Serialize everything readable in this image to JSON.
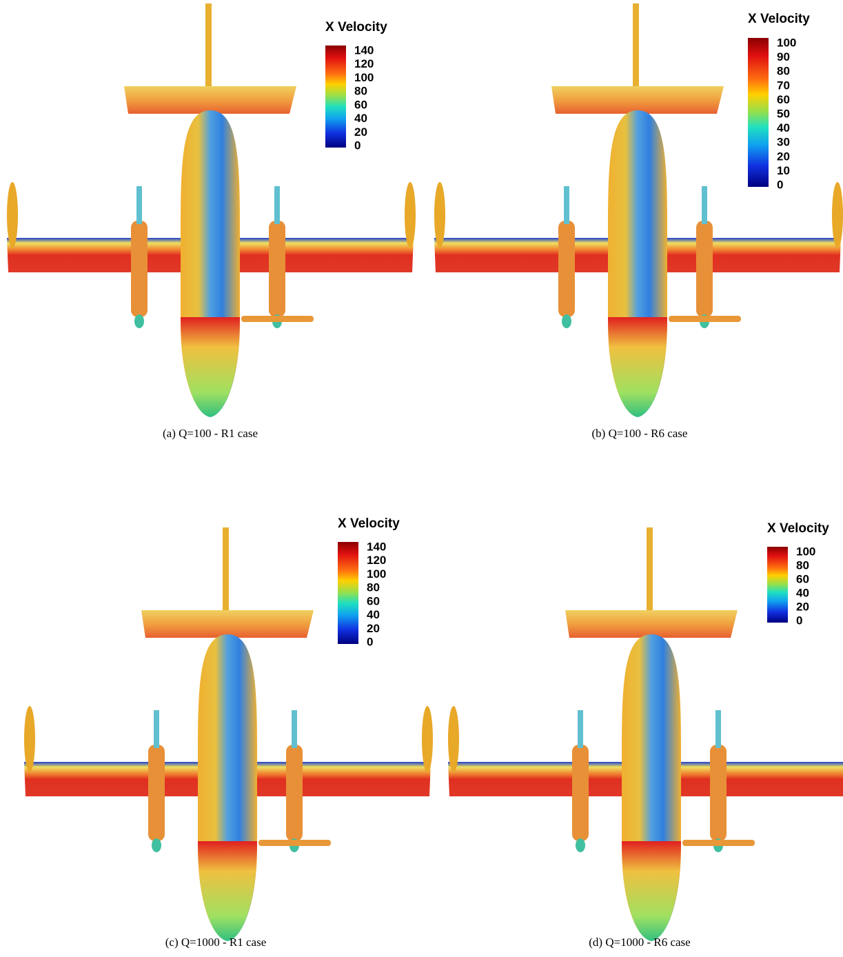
{
  "panels": [
    {
      "caption": "(a) Q=100 - R1 case",
      "legend": {
        "title": "X Velocity",
        "ticks": [
          "140",
          "120",
          "100",
          "80",
          "60",
          "40",
          "20",
          "0"
        ]
      }
    },
    {
      "caption": "(b) Q=100 - R6 case",
      "legend": {
        "title": "X Velocity",
        "ticks": [
          "100",
          "90",
          "80",
          "70",
          "60",
          "50",
          "40",
          "30",
          "20",
          "10",
          "0"
        ]
      }
    },
    {
      "caption": "(c) Q=1000 - R1 case",
      "legend": {
        "title": "X Velocity",
        "ticks": [
          "140",
          "120",
          "100",
          "80",
          "60",
          "40",
          "20",
          "0"
        ]
      }
    },
    {
      "caption": "(d) Q=1000 - R6 case",
      "legend": {
        "title": "X Velocity",
        "ticks": [
          "100",
          "80",
          "60",
          "40",
          "20",
          "0"
        ]
      }
    }
  ]
}
